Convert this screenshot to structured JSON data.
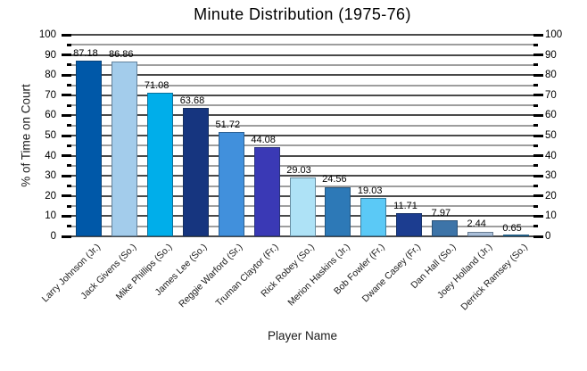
{
  "chart_data": {
    "type": "bar",
    "title": "Minute Distribution (1975-76)",
    "xlabel": "Player Name",
    "ylabel": "% of Time on Court",
    "ylim": [
      0,
      100
    ],
    "ytick_major_step": 10,
    "ytick_minor_step": 5,
    "grid": "horizontal major and minor gridlines drawn behind bars",
    "y_axis_sides": [
      "left",
      "right"
    ],
    "legend": "none",
    "categories": [
      "Larry Johnson (Jr.)",
      "Jack Givens (So.)",
      "Mike Phillips (So.)",
      "James Lee (So.)",
      "Reggie Warford (Sr.)",
      "Truman Claytor (Fr.)",
      "Rick Robey (So.)",
      "Merion Haskins (Jr.)",
      "Bob Fowler (Fr.)",
      "Dwane Casey (Fr.)",
      "Dan Hall (So.)",
      "Joey Holland (Jr.)",
      "Derrick Ramsey (So.)"
    ],
    "values": [
      87.18,
      86.86,
      71.08,
      63.68,
      51.72,
      44.08,
      29.03,
      24.56,
      19.03,
      11.71,
      7.97,
      2.44,
      0.65
    ],
    "value_label_format": "2 decimal places shown above each bar",
    "bar_colors": [
      "#0058a8",
      "#a3cceb",
      "#00aeea",
      "#16357f",
      "#4190dc",
      "#3a39b5",
      "#aee2f6",
      "#2d79b7",
      "#5bc9f6",
      "#1c3d90",
      "#3d74a8",
      "#aabfd9",
      "#2b86bb"
    ]
  },
  "colors": {
    "background": "#ffffff",
    "text": "#000000",
    "grid_major": "#4a4a4a",
    "grid_minor": "#9e9e9e",
    "tick": "#000000",
    "bar_border": "rgba(20,40,60,0.45)"
  }
}
